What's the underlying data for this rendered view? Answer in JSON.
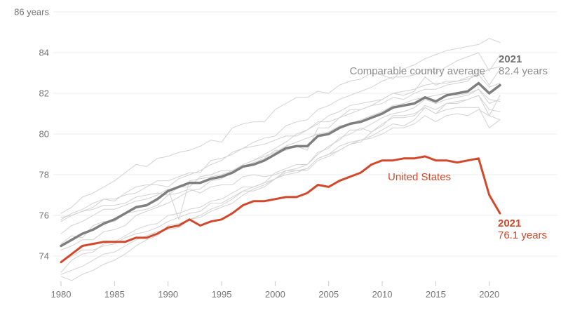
{
  "chart": {
    "colors": {
      "us_red": "#d3472a",
      "average_gray": "#7f7f7f",
      "country_gray": "#d2d2d2",
      "grid": "#ececec",
      "tick_mark": "#c9c9c9",
      "axis_text": "#757575",
      "annot_gray": "#8e8e8e",
      "annot_gray_bold": "#6f6f6f"
    },
    "annotations": {
      "avg_series_label": "Comparable country average",
      "avg_year": "2021",
      "avg_value": "82.4 years",
      "us_series_label": "United States",
      "us_year": "2021",
      "us_value": "76.1 years"
    }
  },
  "chart_data": {
    "type": "line",
    "title": "",
    "xlabel": "",
    "ylabel": "years",
    "x_range": [
      1980,
      2021
    ],
    "ylim": [
      72.5,
      86
    ],
    "grid": "horizontal",
    "y_ticks": [
      {
        "value": 86,
        "label": "86 years"
      },
      {
        "value": 84,
        "label": "84"
      },
      {
        "value": 82,
        "label": "82"
      },
      {
        "value": 80,
        "label": "80"
      },
      {
        "value": 78,
        "label": "78"
      },
      {
        "value": 76,
        "label": "76"
      },
      {
        "value": 74,
        "label": "74"
      }
    ],
    "x_ticks": [
      {
        "value": 1980,
        "label": "1980"
      },
      {
        "value": 1985,
        "label": "1985"
      },
      {
        "value": 1990,
        "label": "1990"
      },
      {
        "value": 1995,
        "label": "1995"
      },
      {
        "value": 2000,
        "label": "2000"
      },
      {
        "value": 2005,
        "label": "2005"
      },
      {
        "value": 2010,
        "label": "2010"
      },
      {
        "value": 2015,
        "label": "2015"
      },
      {
        "value": 2020,
        "label": "2020"
      }
    ],
    "x": [
      1980,
      1981,
      1982,
      1983,
      1984,
      1985,
      1986,
      1987,
      1988,
      1989,
      1990,
      1991,
      1992,
      1993,
      1994,
      1995,
      1996,
      1997,
      1998,
      1999,
      2000,
      2001,
      2002,
      2003,
      2004,
      2005,
      2006,
      2007,
      2008,
      2009,
      2010,
      2011,
      2012,
      2013,
      2014,
      2015,
      2016,
      2017,
      2018,
      2019,
      2020,
      2021
    ],
    "series": [
      {
        "name": "Comparable country 1",
        "role": "country",
        "color": "#d2d2d2",
        "stroke_width": 1,
        "values": [
          76.1,
          76.4,
          76.9,
          77.1,
          77.4,
          77.7,
          78.1,
          78.5,
          78.4,
          78.8,
          78.9,
          79.1,
          79.2,
          79.4,
          79.7,
          79.6,
          80.3,
          80.5,
          80.6,
          80.6,
          81.2,
          81.5,
          81.8,
          81.8,
          82.1,
          82.0,
          82.4,
          82.6,
          82.7,
          83.0,
          82.9,
          82.7,
          83.2,
          83.4,
          83.7,
          83.9,
          84.1,
          84.2,
          84.3,
          84.4,
          84.7,
          84.5
        ]
      },
      {
        "name": "Comparable country 2",
        "role": "country",
        "color": "#d2d2d2",
        "stroke_width": 1,
        "values": [
          75.7,
          76.0,
          76.2,
          76.4,
          76.8,
          76.7,
          77.1,
          77.4,
          77.5,
          77.5,
          77.4,
          77.8,
          78.0,
          78.2,
          78.5,
          78.7,
          79.1,
          79.3,
          79.6,
          79.8,
          79.9,
          80.4,
          80.6,
          80.7,
          81.2,
          81.4,
          81.7,
          81.9,
          82.1,
          82.3,
          82.6,
          82.8,
          82.8,
          82.9,
          83.2,
          83.0,
          83.3,
          83.6,
          83.8,
          84.0,
          83.1,
          83.9
        ]
      },
      {
        "name": "Comparable country 3",
        "role": "country",
        "color": "#d2d2d2",
        "stroke_width": 1,
        "values": [
          75.8,
          76.1,
          76.3,
          76.6,
          76.8,
          76.8,
          77.0,
          77.1,
          77.4,
          77.7,
          77.7,
          77.9,
          78.1,
          78.1,
          78.7,
          78.8,
          79.0,
          79.3,
          79.4,
          79.5,
          79.7,
          79.9,
          79.9,
          80.2,
          80.6,
          80.6,
          80.8,
          81.0,
          81.2,
          81.4,
          81.5,
          81.8,
          81.7,
          82.0,
          82.2,
          82.2,
          82.4,
          82.5,
          82.6,
          83.2,
          82.4,
          83.2
        ]
      },
      {
        "name": "Comparable country 4",
        "role": "country",
        "color": "#d2d2d2",
        "stroke_width": 1,
        "values": [
          75.9,
          76.0,
          76.2,
          76.3,
          76.5,
          76.5,
          76.6,
          76.9,
          77.0,
          77.1,
          77.0,
          77.1,
          77.3,
          77.1,
          77.4,
          77.5,
          77.5,
          77.9,
          78.0,
          77.9,
          78.0,
          78.2,
          78.3,
          78.5,
          79.0,
          79.4,
          79.7,
          80.2,
          80.2,
          80.5,
          80.8,
          81.0,
          81.1,
          81.3,
          81.7,
          81.5,
          81.7,
          81.8,
          81.9,
          82.2,
          81.5,
          81.7
        ]
      },
      {
        "name": "Comparable country 5",
        "role": "country",
        "color": "#d2d2d2",
        "stroke_width": 1,
        "values": [
          74.3,
          74.5,
          74.8,
          74.8,
          75.2,
          75.3,
          75.5,
          76.0,
          76.2,
          76.4,
          76.6,
          76.9,
          77.2,
          77.3,
          77.7,
          77.8,
          78.1,
          78.4,
          78.6,
          78.8,
          79.2,
          79.2,
          79.4,
          79.2,
          80.3,
          80.3,
          80.8,
          81.2,
          81.2,
          81.4,
          81.7,
          82.0,
          81.9,
          82.1,
          82.8,
          82.4,
          82.6,
          82.6,
          82.8,
          82.9,
          82.3,
          82.5
        ]
      },
      {
        "name": "Comparable country 6",
        "role": "country",
        "color": "#d2d2d2",
        "stroke_width": 1,
        "values": [
          75.1,
          75.5,
          75.7,
          76.0,
          76.3,
          76.3,
          76.5,
          76.7,
          76.8,
          77.0,
          77.3,
          75.8,
          77.7,
          77.8,
          77.9,
          78.0,
          78.2,
          78.5,
          78.7,
          78.9,
          79.1,
          79.4,
          79.6,
          79.8,
          80.0,
          80.1,
          80.4,
          80.5,
          80.7,
          80.9,
          81.1,
          81.4,
          81.5,
          81.7,
          81.8,
          81.9,
          82.0,
          81.9,
          82.0,
          82.2,
          81.7,
          81.6
        ]
      },
      {
        "name": "Comparable country 7",
        "role": "country",
        "color": "#d2d2d2",
        "stroke_width": 1,
        "values": [
          74.6,
          75.0,
          74.9,
          75.5,
          75.7,
          75.7,
          76.1,
          76.2,
          76.3,
          76.5,
          77.0,
          77.4,
          77.4,
          77.9,
          78.0,
          78.2,
          78.2,
          78.5,
          78.7,
          79.0,
          79.3,
          79.6,
          80.0,
          80.2,
          80.5,
          80.9,
          81.1,
          81.4,
          81.5,
          81.6,
          81.7,
          82.0,
          82.1,
          82.2,
          82.4,
          82.5,
          82.5,
          82.6,
          82.7,
          82.9,
          83.2,
          83.3
        ]
      },
      {
        "name": "Comparable country 8",
        "role": "country",
        "color": "#d2d2d2",
        "stroke_width": 1,
        "values": [
          73.7,
          74.0,
          74.3,
          74.3,
          74.5,
          74.6,
          74.9,
          75.1,
          75.2,
          75.4,
          75.7,
          75.9,
          76.1,
          76.2,
          76.6,
          76.6,
          76.9,
          77.2,
          77.2,
          77.4,
          77.8,
          78.1,
          78.2,
          78.3,
          78.8,
          79.0,
          79.2,
          79.5,
          79.6,
          80.1,
          80.4,
          80.9,
          80.9,
          81.0,
          81.3,
          81.0,
          81.2,
          81.3,
          81.3,
          81.3,
          80.3,
          80.7
        ]
      },
      {
        "name": "Comparable country 9",
        "role": "country",
        "color": "#d2d2d2",
        "stroke_width": 1,
        "values": [
          73.2,
          73.8,
          74.1,
          74.2,
          74.6,
          74.7,
          75.0,
          75.3,
          75.5,
          75.6,
          76.0,
          76.1,
          76.3,
          76.4,
          76.7,
          76.8,
          77.1,
          77.4,
          77.4,
          77.6,
          77.8,
          78.0,
          78.1,
          78.3,
          78.8,
          79.0,
          79.4,
          79.6,
          79.7,
          79.9,
          80.2,
          80.5,
          80.4,
          80.7,
          81.3,
          81.0,
          81.5,
          81.5,
          81.7,
          81.9,
          80.9,
          81.9
        ]
      },
      {
        "name": "Comparable country 10",
        "role": "country",
        "color": "#d2d2d2",
        "stroke_width": 1,
        "values": [
          73.1,
          73.3,
          73.5,
          73.8,
          74.1,
          74.2,
          74.5,
          74.8,
          75.0,
          75.2,
          75.3,
          75.4,
          75.8,
          75.9,
          76.2,
          76.4,
          76.6,
          77.0,
          77.3,
          77.5,
          77.8,
          78.2,
          78.2,
          78.2,
          78.7,
          78.9,
          79.2,
          79.5,
          79.7,
          79.8,
          80.0,
          80.3,
          80.3,
          80.5,
          80.9,
          80.6,
          80.9,
          81.0,
          80.9,
          81.2,
          80.9,
          80.7
        ]
      },
      {
        "name": "Comparable country 11",
        "role": "country",
        "color": "#d2d2d2",
        "stroke_width": 1,
        "values": [
          73.0,
          72.8,
          73.1,
          73.3,
          73.6,
          73.8,
          74.1,
          74.5,
          74.8,
          75.0,
          75.5,
          75.6,
          75.8,
          76.0,
          76.3,
          76.5,
          76.8,
          77.2,
          77.4,
          77.6,
          78.1,
          78.3,
          78.5,
          78.5,
          79.1,
          79.3,
          79.8,
          80.0,
          80.3,
          80.1,
          80.5,
          80.8,
          80.8,
          80.9,
          81.4,
          81.2,
          81.5,
          81.6,
          81.7,
          81.9,
          81.2,
          81.1
        ]
      },
      {
        "name": "Comparable country average",
        "role": "average",
        "color": "#7f7f7f",
        "stroke_width": 3.5,
        "values": [
          74.5,
          74.8,
          75.1,
          75.3,
          75.6,
          75.8,
          76.1,
          76.4,
          76.5,
          76.8,
          77.2,
          77.4,
          77.6,
          77.6,
          77.8,
          77.9,
          78.1,
          78.4,
          78.5,
          78.7,
          79.0,
          79.3,
          79.4,
          79.4,
          79.9,
          80.0,
          80.3,
          80.5,
          80.6,
          80.8,
          81.0,
          81.3,
          81.4,
          81.5,
          81.8,
          81.6,
          81.9,
          82.0,
          82.1,
          82.5,
          82.0,
          82.4
        ]
      },
      {
        "name": "United States",
        "role": "us",
        "color": "#d3472a",
        "stroke_width": 3,
        "values": [
          73.7,
          74.1,
          74.5,
          74.6,
          74.7,
          74.7,
          74.7,
          74.9,
          74.9,
          75.1,
          75.4,
          75.5,
          75.8,
          75.5,
          75.7,
          75.8,
          76.1,
          76.5,
          76.7,
          76.7,
          76.8,
          76.9,
          76.9,
          77.1,
          77.5,
          77.4,
          77.7,
          77.9,
          78.1,
          78.5,
          78.7,
          78.7,
          78.8,
          78.8,
          78.9,
          78.7,
          78.7,
          78.6,
          78.7,
          78.8,
          77.0,
          76.1
        ]
      }
    ],
    "legend": "none",
    "annotations": [
      {
        "text": "Comparable country average",
        "target_series": "Comparable country average"
      },
      {
        "text": "2021",
        "target_series": "Comparable country average"
      },
      {
        "text": "82.4 years",
        "target_series": "Comparable country average"
      },
      {
        "text": "United States",
        "target_series": "United States"
      },
      {
        "text": "2021",
        "target_series": "United States"
      },
      {
        "text": "76.1 years",
        "target_series": "United States"
      }
    ]
  }
}
